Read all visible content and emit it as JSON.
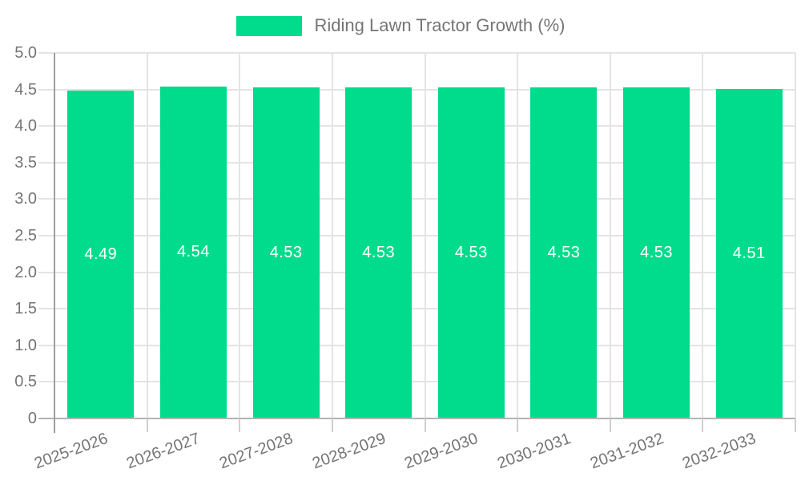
{
  "legend": {
    "label": "Riding Lawn Tractor Growth (%)"
  },
  "chart_data": {
    "type": "bar",
    "title": "Riding Lawn Tractor Growth (%)",
    "categories": [
      "2025-2026",
      "2026-2027",
      "2027-2028",
      "2028-2029",
      "2029-2030",
      "2030-2031",
      "2031-2032",
      "2032-2033"
    ],
    "values": [
      4.49,
      4.54,
      4.53,
      4.53,
      4.53,
      4.53,
      4.53,
      4.51
    ],
    "value_labels": [
      "4.49",
      "4.54",
      "4.53",
      "4.53",
      "4.53",
      "4.53",
      "4.53",
      "4.51"
    ],
    "xlabel": "",
    "ylabel": "",
    "ylim": [
      0,
      5.0
    ],
    "ytick_step": 0.5,
    "ytick_labels": [
      "0",
      "0.5",
      "1.0",
      "1.5",
      "2.0",
      "2.5",
      "3.0",
      "3.5",
      "4.0",
      "4.5",
      "5.0"
    ],
    "grid": true,
    "legend_position": "top"
  },
  "colors": {
    "bar": "#00DB8C",
    "grid": "#e4e4e4",
    "axis": "#9e9e9e",
    "zero_line": "#b3b3b3",
    "tick": "#cfcfcf",
    "label": "#757575",
    "value_label": "#ffffff",
    "background": "#ffffff"
  }
}
